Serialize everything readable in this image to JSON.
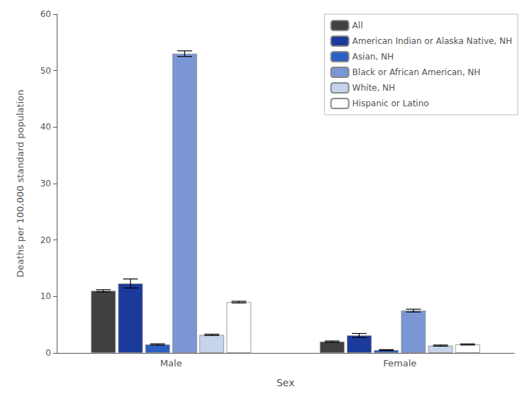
{
  "chart_data": {
    "type": "bar",
    "xlabel": "Sex",
    "ylabel": "Deaths per 100,000 standard population",
    "categories": [
      "Male",
      "Female"
    ],
    "series": [
      {
        "name": "All",
        "color": "#404040",
        "values": [
          11.0,
          2.0
        ],
        "errors": [
          0.2,
          0.12
        ]
      },
      {
        "name": "American Indian or Alaska Native, NH",
        "color": "#1a3a9c",
        "values": [
          12.3,
          3.1
        ],
        "errors": [
          0.8,
          0.35
        ]
      },
      {
        "name": "Asian, NH",
        "color": "#2e5fc2",
        "values": [
          1.5,
          0.5
        ],
        "errors": [
          0.12,
          0.08
        ]
      },
      {
        "name": "Black or African American, NH",
        "color": "#7b96d4",
        "values": [
          53.0,
          7.5
        ],
        "errors": [
          0.5,
          0.25
        ]
      },
      {
        "name": "White, NH",
        "color": "#c5d3eb",
        "values": [
          3.2,
          1.3
        ],
        "errors": [
          0.12,
          0.1
        ]
      },
      {
        "name": "Hispanic or Latino",
        "color": "#ffffff",
        "values": [
          9.0,
          1.5
        ],
        "errors": [
          0.15,
          0.1
        ]
      }
    ],
    "ylim": [
      0,
      60
    ],
    "yticks": [
      0,
      10,
      20,
      30,
      40,
      50,
      60
    ],
    "grid": false,
    "legend": "upper right"
  }
}
